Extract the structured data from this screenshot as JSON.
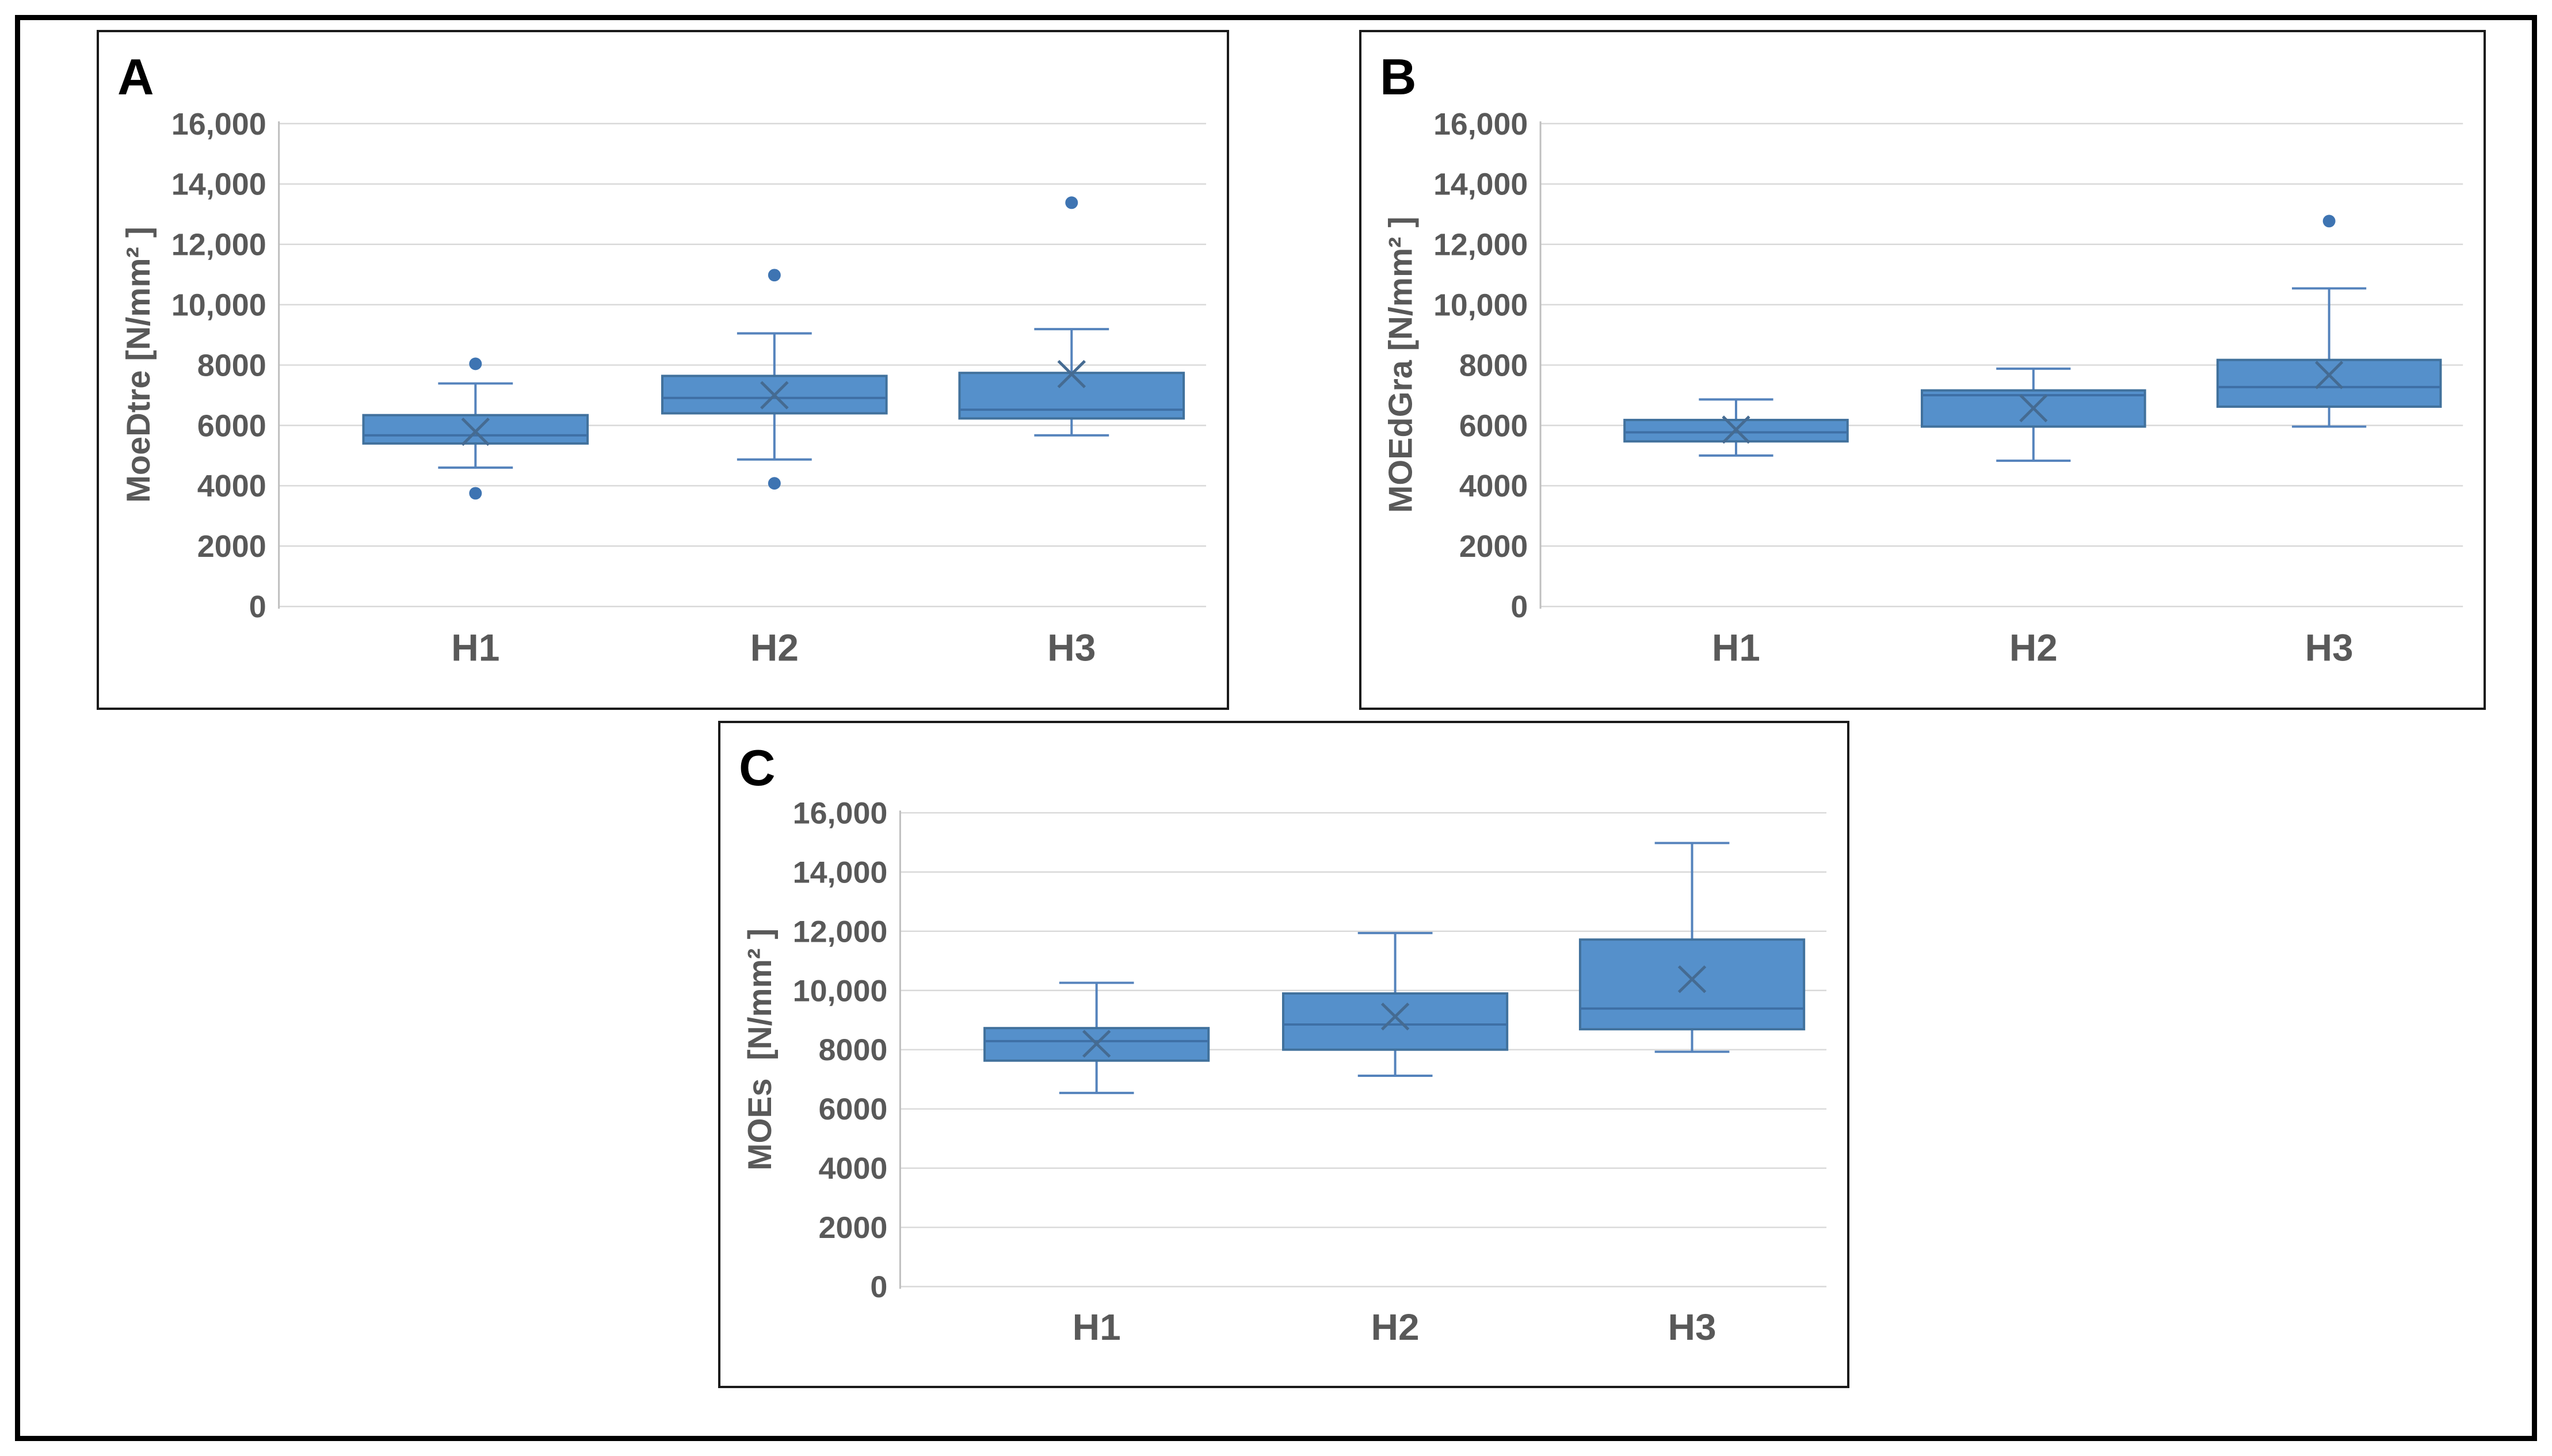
{
  "page": {
    "background": "#ffffff"
  },
  "frame": {
    "border_color": "#000000"
  },
  "style": {
    "box_fill": "#5590CB",
    "box_border": "#41719C",
    "whisker_color": "#5583BC",
    "median_color": "#3E6FA5",
    "mean_marker_color": "#456B92",
    "outlier_color": "#3E74B2",
    "gridline_color": "#D9D9D9",
    "axis_line_color": "#BFBFBF",
    "label_color": "#595959",
    "panel_letter_color": "#000000",
    "panel_border_color": "#1a1a1a"
  },
  "chart_data": [
    {
      "type": "boxplot",
      "panel_label": "A",
      "ylabel": "MoeDtre [N/mm² ]",
      "categories": [
        "H1",
        "H2",
        "H3"
      ],
      "ylim": [
        0,
        16000
      ],
      "ytick_interval": 2000,
      "ytick_labels": [
        "16,000",
        "14,000",
        "12,000",
        "10,000",
        "8000",
        "6000",
        "4000",
        "2000",
        "0"
      ],
      "grid": true,
      "legend": "none",
      "boxes": [
        {
          "category": "H1",
          "whisker_low": 4600,
          "q1": 5400,
          "median": 5670,
          "mean": 5790,
          "q3": 6340,
          "whisker_high": 7390,
          "outliers": [
            8040,
            3750
          ]
        },
        {
          "category": "H2",
          "whisker_low": 4870,
          "q1": 6400,
          "median": 6910,
          "mean": 7000,
          "q3": 7640,
          "whisker_high": 9050,
          "outliers": [
            10980,
            4080
          ]
        },
        {
          "category": "H3",
          "whisker_low": 5670,
          "q1": 6230,
          "median": 6520,
          "mean": 7700,
          "q3": 7740,
          "whisker_high": 9190,
          "outliers": [
            13380
          ]
        }
      ]
    },
    {
      "type": "boxplot",
      "panel_label": "B",
      "ylabel": "MOEdGra [N/mm² ]",
      "categories": [
        "H1",
        "H2",
        "H3"
      ],
      "ylim": [
        0,
        16000
      ],
      "ytick_interval": 2000,
      "ytick_labels": [
        "16,000",
        "14,000",
        "12,000",
        "10,000",
        "8000",
        "6000",
        "4000",
        "2000",
        "0"
      ],
      "grid": true,
      "legend": "none",
      "boxes": [
        {
          "category": "H1",
          "whisker_low": 5000,
          "q1": 5470,
          "median": 5770,
          "mean": 5860,
          "q3": 6180,
          "whisker_high": 6860,
          "outliers": []
        },
        {
          "category": "H2",
          "whisker_low": 4830,
          "q1": 5960,
          "median": 7000,
          "mean": 6570,
          "q3": 7160,
          "whisker_high": 7880,
          "outliers": []
        },
        {
          "category": "H3",
          "whisker_low": 5960,
          "q1": 6620,
          "median": 7270,
          "mean": 7670,
          "q3": 8170,
          "whisker_high": 10540,
          "outliers": [
            12770
          ]
        }
      ]
    },
    {
      "type": "boxplot",
      "panel_label": "C",
      "ylabel": "MOEs  [N/mm² ]",
      "categories": [
        "H1",
        "H2",
        "H3"
      ],
      "ylim": [
        0,
        16000
      ],
      "ytick_interval": 2000,
      "ytick_labels": [
        "16,000",
        "14,000",
        "12,000",
        "10,000",
        "8000",
        "6000",
        "4000",
        "2000",
        "0"
      ],
      "grid": true,
      "legend": "none",
      "boxes": [
        {
          "category": "H1",
          "whisker_low": 6540,
          "q1": 7630,
          "median": 8290,
          "mean": 8200,
          "q3": 8730,
          "whisker_high": 10260,
          "outliers": []
        },
        {
          "category": "H2",
          "whisker_low": 7120,
          "q1": 8000,
          "median": 8850,
          "mean": 9120,
          "q3": 9900,
          "whisker_high": 11940,
          "outliers": []
        },
        {
          "category": "H3",
          "whisker_low": 7930,
          "q1": 8690,
          "median": 9390,
          "mean": 10380,
          "q3": 11720,
          "whisker_high": 14980,
          "outliers": []
        }
      ]
    }
  ]
}
